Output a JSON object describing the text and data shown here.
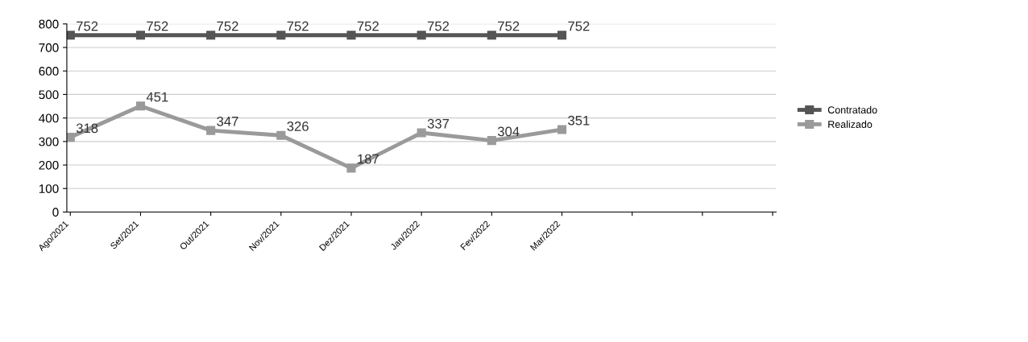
{
  "chart_data": {
    "type": "line",
    "categories": [
      "Ago/2021",
      "Set/2021",
      "Out/2021",
      "Nov/2021",
      "Dez/2021",
      "Jan/2022",
      "Fev/2022",
      "Mar/2022",
      null,
      null,
      null
    ],
    "series": [
      {
        "name": "Contratado",
        "color": "#555555",
        "values": [
          752,
          752,
          752,
          752,
          752,
          752,
          752,
          752,
          null,
          null,
          null
        ]
      },
      {
        "name": "Realizado",
        "color": "#9a9a9a",
        "values": [
          318,
          451,
          347,
          326,
          187,
          337,
          304,
          351,
          null,
          null,
          null
        ]
      }
    ],
    "ylim": [
      0,
      800
    ],
    "yticks": [
      0,
      100,
      200,
      300,
      400,
      500,
      600,
      700,
      800
    ],
    "grid": "y",
    "legend": "right",
    "marker": "square",
    "data_labels": true
  }
}
